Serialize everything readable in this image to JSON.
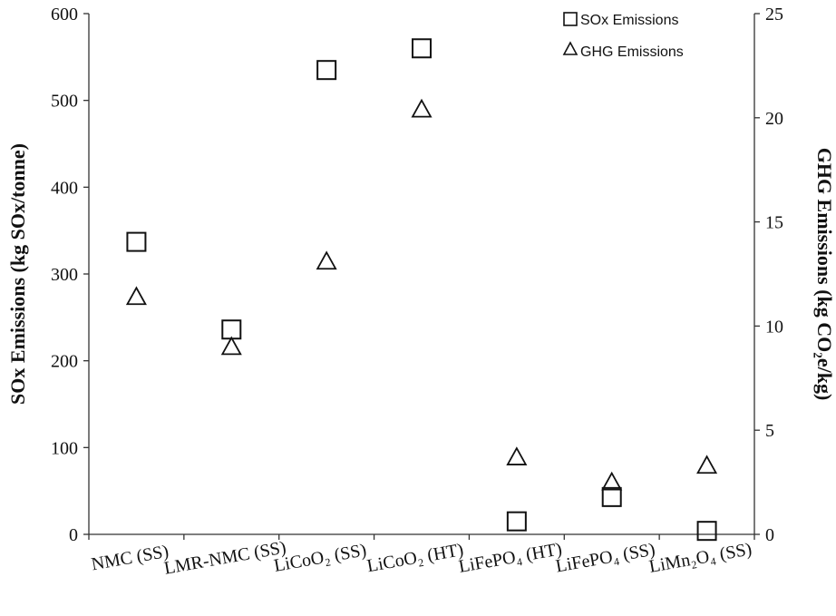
{
  "chart_data": {
    "type": "scatter",
    "categories": [
      "NMC (SS)",
      "LMR-NMC (SS)",
      "LiCoO₂ (SS)",
      "LiCoO₂ (HT)",
      "LiFePO₄ (HT)",
      "LiFePO₄ (SS)",
      "LiMn₂O₄ (SS)"
    ],
    "series": [
      {
        "name": "SOx Emissions",
        "axis": "left",
        "marker": "square",
        "values": [
          337,
          236,
          535,
          560,
          15,
          43,
          4
        ]
      },
      {
        "name": "GHG Emissions",
        "axis": "right",
        "marker": "triangle",
        "values": [
          11.4,
          9.0,
          13.1,
          20.4,
          3.7,
          2.5,
          3.3
        ]
      }
    ],
    "ylabel": "SOx Emissions (kg SOx/tonne)",
    "y2label": "GHG Emissions (kg CO₂e/kg)",
    "ylim": [
      0,
      600
    ],
    "y2lim": [
      0,
      25
    ],
    "yticks": [
      "0",
      "100",
      "200",
      "300",
      "400",
      "500",
      "600"
    ],
    "y2ticks": [
      "0",
      "5",
      "10",
      "15",
      "20",
      "25"
    ],
    "grid": false,
    "legend_position": "top-right",
    "colors": {
      "marker_stroke": "#111111",
      "axis": "#333333",
      "background": "#ffffff"
    }
  }
}
